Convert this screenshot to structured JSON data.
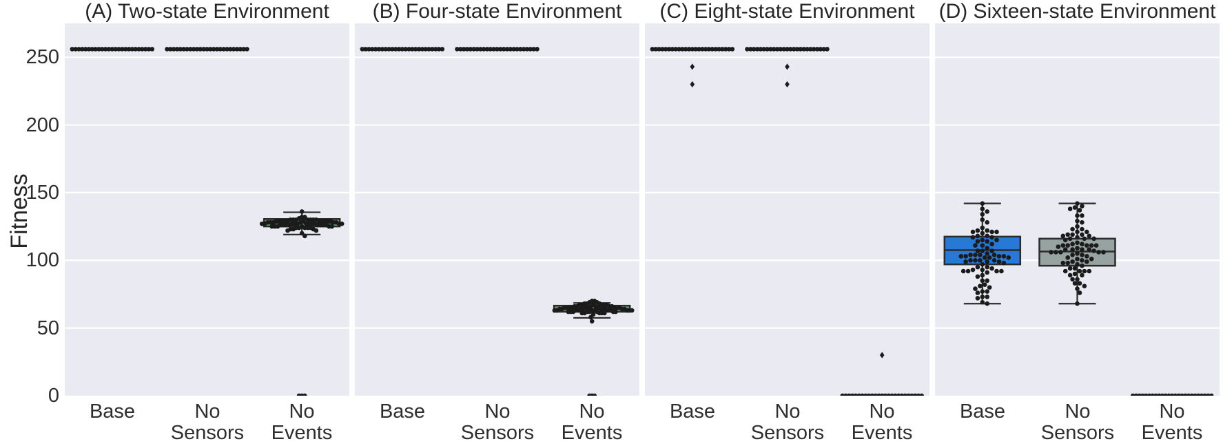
{
  "figure": {
    "ylabel": "Fitness",
    "panel_bg": "#EAEAF2",
    "grid_color": "#FFFFFF",
    "dot_color": "#1B1B1B",
    "edge_color": "#2B2B2B",
    "accent_blue": "#2878D8",
    "accent_gray": "#96A3A0",
    "accent_green": "#55A868"
  },
  "chart_data": {
    "type": "boxplot-swarm",
    "ylabel": "Fitness",
    "ylim": [
      0,
      275
    ],
    "yticks": [
      0,
      50,
      100,
      150,
      200,
      250
    ],
    "grid": true,
    "categories": [
      "Base",
      "No Sensors",
      "No Events"
    ],
    "categories_lines": [
      [
        "Base"
      ],
      [
        "No",
        "Sensors"
      ],
      [
        "No",
        "Events"
      ]
    ],
    "panels": [
      {
        "id": "A",
        "title": "(A) Two-state Environment",
        "groups": [
          {
            "category": "Base",
            "box": {
              "q1": 256,
              "median": 256,
              "q3": 256,
              "whisker_low": 256,
              "whisker_high": 256,
              "fill": "#2878D8"
            },
            "points": {
              "type": "constant",
              "value": 256,
              "n": 25,
              "span": 116
            },
            "outliers": []
          },
          {
            "category": "No Sensors",
            "box": {
              "q1": 256,
              "median": 256,
              "q3": 256,
              "whisker_low": 256,
              "whisker_high": 256,
              "fill": "#96A3A0"
            },
            "points": {
              "type": "constant",
              "value": 256,
              "n": 25,
              "span": 116
            },
            "outliers": []
          },
          {
            "category": "No Events",
            "box": {
              "q1": 125,
              "median": 127.5,
              "q3": 130.5,
              "whisker_low": 119,
              "whisker_high": 135.5,
              "fill": "#55A868"
            },
            "points": {
              "type": "normal",
              "mean": 127.5,
              "sd": 2.6,
              "min": 118,
              "max": 136,
              "n": 65,
              "max_half": 58
            },
            "extra_points": [
              0,
              0,
              0
            ],
            "outliers": []
          }
        ]
      },
      {
        "id": "B",
        "title": "(B) Four-state Environment",
        "groups": [
          {
            "category": "Base",
            "box": {
              "q1": 256,
              "median": 256,
              "q3": 256,
              "whisker_low": 256,
              "whisker_high": 256,
              "fill": "#2878D8"
            },
            "points": {
              "type": "constant",
              "value": 256,
              "n": 25,
              "span": 116
            },
            "outliers": []
          },
          {
            "category": "No Sensors",
            "box": {
              "q1": 256,
              "median": 256,
              "q3": 256,
              "whisker_low": 256,
              "whisker_high": 256,
              "fill": "#96A3A0"
            },
            "points": {
              "type": "constant",
              "value": 256,
              "n": 25,
              "span": 116
            },
            "outliers": []
          },
          {
            "category": "No Events",
            "box": {
              "q1": 62,
              "median": 64,
              "q3": 66.5,
              "whisker_low": 57.5,
              "whisker_high": 68.5,
              "fill": "#55A868"
            },
            "points": {
              "type": "normal",
              "mean": 64,
              "sd": 2.4,
              "min": 55,
              "max": 70,
              "n": 65,
              "max_half": 58
            },
            "extra_points": [
              0,
              0,
              0
            ],
            "outliers": []
          }
        ]
      },
      {
        "id": "C",
        "title": "(C) Eight-state Environment",
        "groups": [
          {
            "category": "Base",
            "box": {
              "q1": 256,
              "median": 256,
              "q3": 256,
              "whisker_low": 256,
              "whisker_high": 256,
              "fill": "#2878D8"
            },
            "points": {
              "type": "constant",
              "value": 256,
              "n": 25,
              "span": 116
            },
            "outliers": [
              243,
              230
            ]
          },
          {
            "category": "No Sensors",
            "box": {
              "q1": 256,
              "median": 256,
              "q3": 256,
              "whisker_low": 256,
              "whisker_high": 256,
              "fill": "#96A3A0"
            },
            "points": {
              "type": "constant",
              "value": 256,
              "n": 25,
              "span": 116
            },
            "outliers": [
              243,
              230
            ]
          },
          {
            "category": "No Events",
            "box": {
              "q1": 0,
              "median": 0,
              "q3": 0,
              "whisker_low": 0,
              "whisker_high": 0,
              "fill": "#55A868"
            },
            "points": {
              "type": "constant",
              "value": 0,
              "n": 25,
              "span": 115
            },
            "outliers": [
              30
            ]
          }
        ]
      },
      {
        "id": "D",
        "title": "(D) Sixteen-state Environment",
        "groups": [
          {
            "category": "Base",
            "box": {
              "q1": 97,
              "median": 107.5,
              "q3": 117.5,
              "whisker_low": 68,
              "whisker_high": 142,
              "fill": "#2878D8"
            },
            "points": {
              "type": "normal",
              "mean": 106,
              "sd": 16,
              "min": 68,
              "max": 142,
              "n": 75,
              "max_half": 55
            },
            "outliers": []
          },
          {
            "category": "No Sensors",
            "box": {
              "q1": 96,
              "median": 106.5,
              "q3": 116,
              "whisker_low": 68,
              "whisker_high": 142,
              "fill": "#96A3A0"
            },
            "points": {
              "type": "normal",
              "mean": 105,
              "sd": 16,
              "min": 68,
              "max": 142,
              "n": 75,
              "max_half": 55
            },
            "outliers": []
          },
          {
            "category": "No Events",
            "box": {
              "q1": 0,
              "median": 0,
              "q3": 0,
              "whisker_low": 0,
              "whisker_high": 0,
              "fill": "#55A868"
            },
            "points": {
              "type": "constant",
              "value": 0,
              "n": 25,
              "span": 114
            },
            "outliers": []
          }
        ]
      }
    ]
  }
}
